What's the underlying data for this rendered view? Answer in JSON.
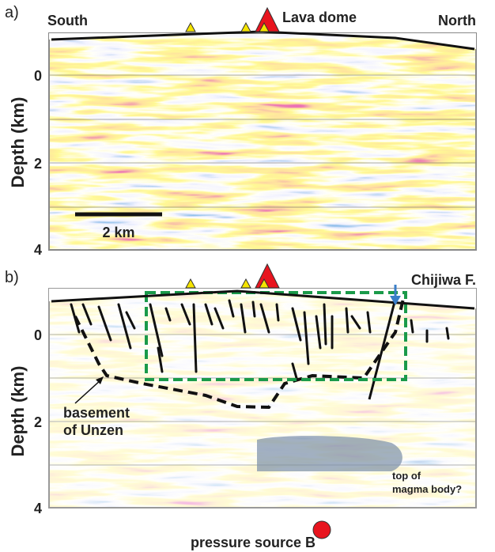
{
  "panel_a": {
    "label": "a)",
    "south": "South",
    "north": "North",
    "lava_dome": "Lava dome",
    "y_axis_label": "Depth (km)",
    "depth_ticks": [
      0,
      2,
      4
    ],
    "scale_bar": "2 km"
  },
  "panel_b": {
    "label": "b)",
    "y_axis_label": "Depth (km)",
    "depth_ticks": [
      0,
      2,
      4
    ],
    "fault": "Chijiwa F.",
    "basement": [
      "basement",
      "of Unzen"
    ],
    "magma": [
      "top of",
      "magma body?"
    ],
    "pressure_source": "pressure source B"
  }
}
